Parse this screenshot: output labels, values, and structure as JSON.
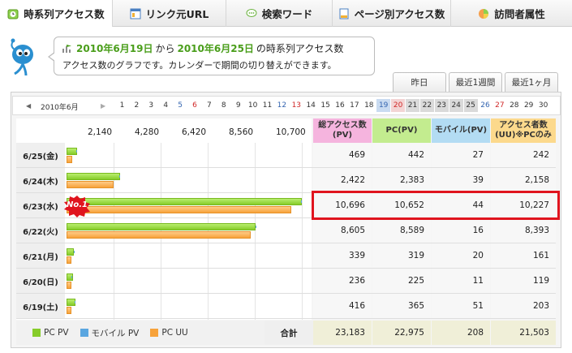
{
  "tabs": [
    {
      "label": "時系列アクセス数",
      "icon": "clock-icon",
      "active": true
    },
    {
      "label": "リンク元URL",
      "icon": "window-icon",
      "active": false
    },
    {
      "label": "検索ワード",
      "icon": "search-chat-icon",
      "active": false
    },
    {
      "label": "ページ別アクセス数",
      "icon": "page-icon",
      "active": false
    },
    {
      "label": "訪問者属性",
      "icon": "pie-icon",
      "active": false
    }
  ],
  "message": {
    "start_date": "2010年6月19日",
    "from": "から",
    "end_date": "2010年6月25日",
    "suffix": "の時系列アクセス数",
    "description": "アクセス数のグラフです。カレンダーで期間の切り替えができます。"
  },
  "period_buttons": [
    "昨日",
    "最近1週間",
    "最近1ヶ月"
  ],
  "calendar": {
    "prev": "◀",
    "month": "2010年6月",
    "next": "▶",
    "days": [
      "1",
      "2",
      "3",
      "4",
      "5",
      "6",
      "7",
      "8",
      "9",
      "10",
      "11",
      "12",
      "13",
      "14",
      "15",
      "16",
      "17",
      "18",
      "19",
      "20",
      "21",
      "22",
      "23",
      "24",
      "25",
      "26",
      "27",
      "28",
      "29",
      "30"
    ]
  },
  "columns": {
    "total": "総アクセス数\n(PV)",
    "pc": "PC(PV)",
    "mobile": "モバイル(PV)",
    "uu": "アクセス者数\n(UU)※PCのみ"
  },
  "badge": "No.1",
  "legend": {
    "pc_pv": "PC PV",
    "mobile_pv": "モバイル PV",
    "pc_uu": "PC UU"
  },
  "totals": {
    "label": "合計",
    "total": "23,183",
    "pc": "22,975",
    "mobile": "208",
    "uu": "21,503"
  },
  "colors": {
    "pc": "#86cc2a",
    "mobile": "#5aa6e0",
    "uu": "#f7a23a",
    "highlight": "#e0141e"
  },
  "chart_data": {
    "type": "bar",
    "orientation": "horizontal",
    "categories": [
      "6/25(金)",
      "6/24(木)",
      "6/23(水)",
      "6/22(火)",
      "6/21(月)",
      "6/20(日)",
      "6/19(土)"
    ],
    "series": [
      {
        "name": "PC PV",
        "values": [
          442,
          2383,
          10652,
          8589,
          319,
          225,
          365
        ]
      },
      {
        "name": "モバイル PV",
        "values": [
          27,
          39,
          44,
          16,
          20,
          11,
          51
        ]
      },
      {
        "name": "PC UU",
        "values": [
          242,
          2158,
          10227,
          8393,
          161,
          119,
          203
        ]
      }
    ],
    "totals": [
      "469",
      "2,422",
      "10,696",
      "8,605",
      "339",
      "236",
      "416"
    ],
    "pc_labels": [
      "442",
      "2,383",
      "10,652",
      "8,589",
      "319",
      "225",
      "365"
    ],
    "mobile_labels": [
      "27",
      "39",
      "44",
      "16",
      "20",
      "11",
      "51"
    ],
    "uu_labels": [
      "242",
      "2,158",
      "10,227",
      "8,393",
      "161",
      "119",
      "203"
    ],
    "xticks": [
      "2,140",
      "4,280",
      "6,420",
      "8,560",
      "10,700"
    ],
    "xlim": [
      0,
      10700
    ]
  }
}
